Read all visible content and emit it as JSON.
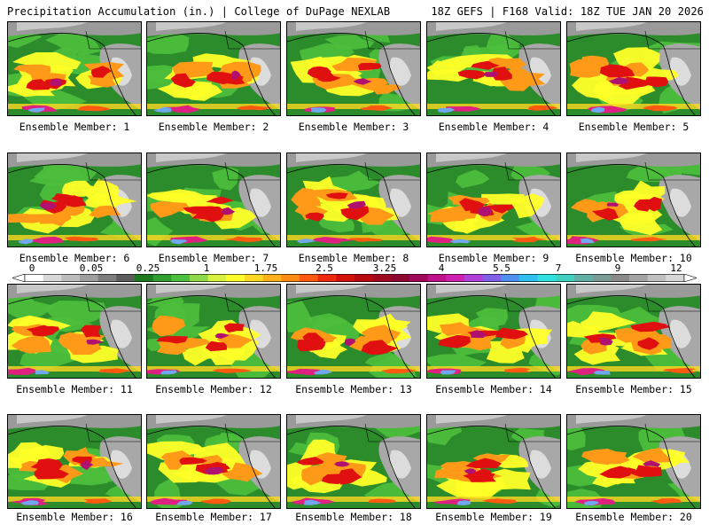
{
  "header": {
    "title": "Precipitation Accumulation (in.) | College of DuPage NEXLAB",
    "valid": "18Z GEFS | F168 Valid: 18Z TUE JAN 20 2026"
  },
  "panels": [
    {
      "label": "Ensemble Member: 1"
    },
    {
      "label": "Ensemble Member: 2"
    },
    {
      "label": "Ensemble Member: 3"
    },
    {
      "label": "Ensemble Member: 4"
    },
    {
      "label": "Ensemble Member: 5"
    },
    {
      "label": "Ensemble Member: 6"
    },
    {
      "label": "Ensemble Member: 7"
    },
    {
      "label": "Ensemble Member: 8"
    },
    {
      "label": "Ensemble Member: 9"
    },
    {
      "label": "Ensemble Member: 10"
    },
    {
      "label": "Ensemble Member: 11"
    },
    {
      "label": "Ensemble Member: 12"
    },
    {
      "label": "Ensemble Member: 13"
    },
    {
      "label": "Ensemble Member: 14"
    },
    {
      "label": "Ensemble Member: 15"
    },
    {
      "label": "Ensemble Member: 16"
    },
    {
      "label": "Ensemble Member: 17"
    },
    {
      "label": "Ensemble Member: 18"
    },
    {
      "label": "Ensemble Member: 19"
    },
    {
      "label": "Ensemble Member: 20"
    }
  ],
  "colorbar": {
    "labels": [
      "0",
      "0.05",
      "0.25",
      "1",
      "1.75",
      "2.5",
      "3.25",
      "4",
      "5.5",
      "7",
      "9",
      "12"
    ],
    "colors": [
      "#ffffff",
      "#d8d8d8",
      "#bcbcbc",
      "#9e9e9e",
      "#7d7d7d",
      "#5c5c5c",
      "#1f7a1f",
      "#2f9e2f",
      "#4cbf3c",
      "#8fd84a",
      "#d8f040",
      "#ffff28",
      "#ffd820",
      "#ffb01a",
      "#ff8a14",
      "#ff5a10",
      "#f0280c",
      "#d4100a",
      "#b80810",
      "#a00820",
      "#8c0830",
      "#a0085a",
      "#c0108a",
      "#d020b0",
      "#b040d8",
      "#8060e8",
      "#5090f0",
      "#30c0f0",
      "#30e0e0",
      "#40d0c0",
      "#60b0a8",
      "#7a9a96",
      "#8a8a8a",
      "#a4a4a4",
      "#c0c0c0",
      "#d8d8d8"
    ]
  }
}
